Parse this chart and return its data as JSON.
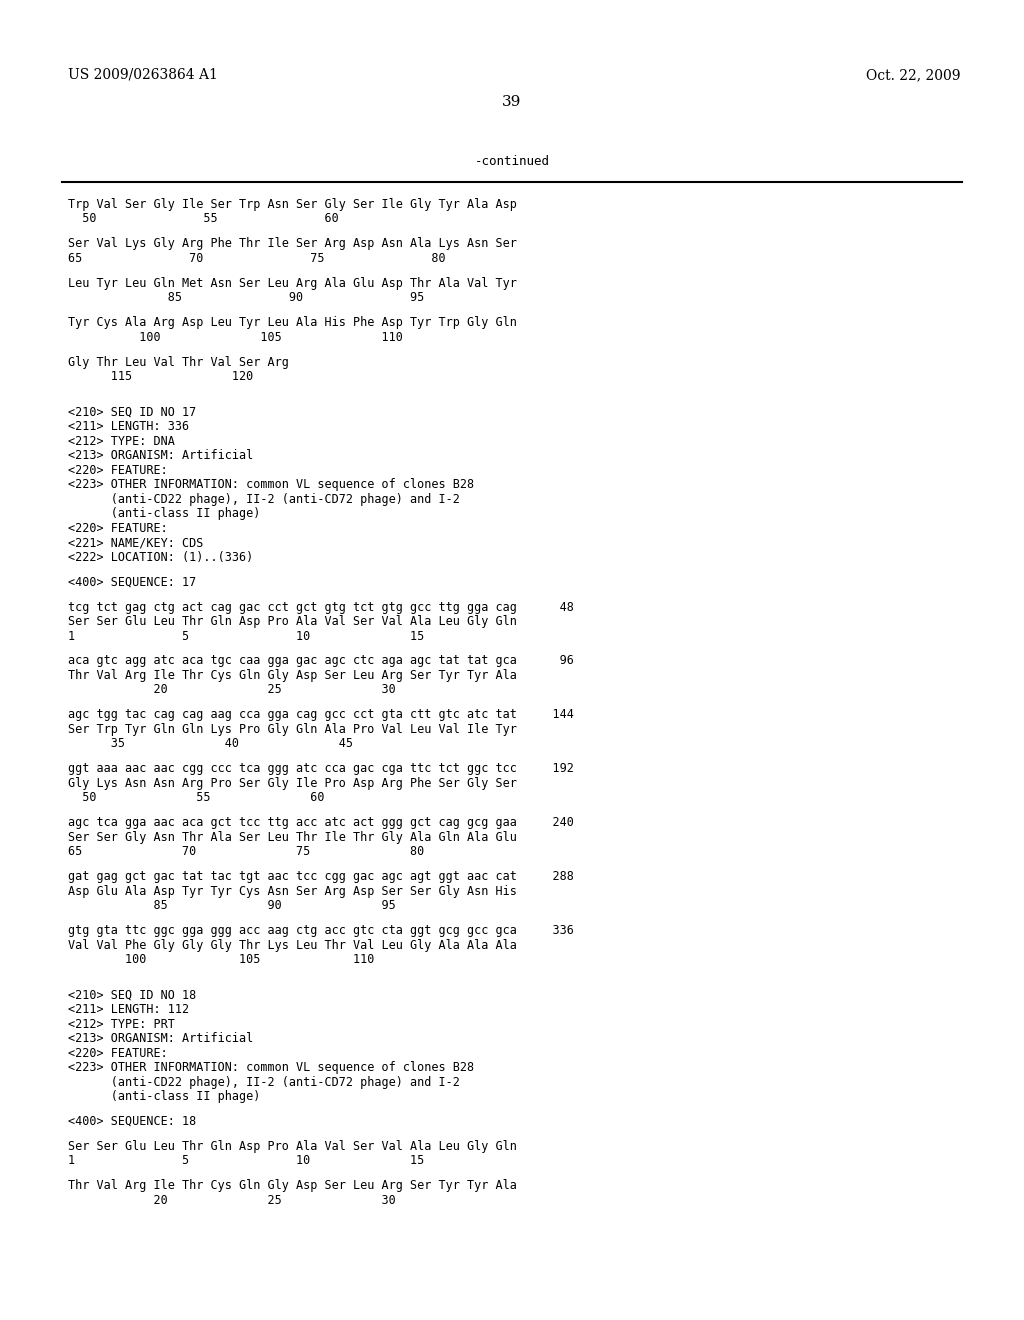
{
  "header_left": "US 2009/0263864 A1",
  "header_right": "Oct. 22, 2009",
  "page_number": "39",
  "continued_label": "-continued",
  "background_color": "#ffffff",
  "text_color": "#000000",
  "font_size": 8.5,
  "mono_font": "DejaVu Sans Mono",
  "lines": [
    "Trp Val Ser Gly Ile Ser Trp Asn Ser Gly Ser Ile Gly Tyr Ala Asp",
    "  50               55               60",
    "",
    "Ser Val Lys Gly Arg Phe Thr Ile Ser Arg Asp Asn Ala Lys Asn Ser",
    "65               70               75               80",
    "",
    "Leu Tyr Leu Gln Met Asn Ser Leu Arg Ala Glu Asp Thr Ala Val Tyr",
    "              85               90               95",
    "",
    "Tyr Cys Ala Arg Asp Leu Tyr Leu Ala His Phe Asp Tyr Trp Gly Gln",
    "          100              105              110",
    "",
    "Gly Thr Leu Val Thr Val Ser Arg",
    "      115              120",
    "",
    "",
    "<210> SEQ ID NO 17",
    "<211> LENGTH: 336",
    "<212> TYPE: DNA",
    "<213> ORGANISM: Artificial",
    "<220> FEATURE:",
    "<223> OTHER INFORMATION: common VL sequence of clones B28",
    "      (anti-CD22 phage), II-2 (anti-CD72 phage) and I-2",
    "      (anti-class II phage)",
    "<220> FEATURE:",
    "<221> NAME/KEY: CDS",
    "<222> LOCATION: (1)..(336)",
    "",
    "<400> SEQUENCE: 17",
    "",
    "tcg tct gag ctg act cag gac cct gct gtg tct gtg gcc ttg gga cag      48",
    "Ser Ser Glu Leu Thr Gln Asp Pro Ala Val Ser Val Ala Leu Gly Gln",
    "1               5               10              15",
    "",
    "aca gtc agg atc aca tgc caa gga gac agc ctc aga agc tat tat gca      96",
    "Thr Val Arg Ile Thr Cys Gln Gly Asp Ser Leu Arg Ser Tyr Tyr Ala",
    "            20              25              30",
    "",
    "agc tgg tac cag cag aag cca gga cag gcc cct gta ctt gtc atc tat     144",
    "Ser Trp Tyr Gln Gln Lys Pro Gly Gln Ala Pro Val Leu Val Ile Tyr",
    "      35              40              45",
    "",
    "ggt aaa aac aac cgg ccc tca ggg atc cca gac cga ttc tct ggc tcc     192",
    "Gly Lys Asn Asn Arg Pro Ser Gly Ile Pro Asp Arg Phe Ser Gly Ser",
    "  50              55              60",
    "",
    "agc tca gga aac aca gct tcc ttg acc atc act ggg gct cag gcg gaa     240",
    "Ser Ser Gly Asn Thr Ala Ser Leu Thr Ile Thr Gly Ala Gln Ala Glu",
    "65              70              75              80",
    "",
    "gat gag gct gac tat tac tgt aac tcc cgg gac agc agt ggt aac cat     288",
    "Asp Glu Ala Asp Tyr Tyr Cys Asn Ser Arg Asp Ser Ser Gly Asn His",
    "            85              90              95",
    "",
    "gtg gta ttc ggc gga ggg acc aag ctg acc gtc cta ggt gcg gcc gca     336",
    "Val Val Phe Gly Gly Gly Thr Lys Leu Thr Val Leu Gly Ala Ala Ala",
    "        100             105             110",
    "",
    "",
    "<210> SEQ ID NO 18",
    "<211> LENGTH: 112",
    "<212> TYPE: PRT",
    "<213> ORGANISM: Artificial",
    "<220> FEATURE:",
    "<223> OTHER INFORMATION: common VL sequence of clones B28",
    "      (anti-CD22 phage), II-2 (anti-CD72 phage) and I-2",
    "      (anti-class II phage)",
    "",
    "<400> SEQUENCE: 18",
    "",
    "Ser Ser Glu Leu Thr Gln Asp Pro Ala Val Ser Val Ala Leu Gly Gln",
    "1               5               10              15",
    "",
    "Thr Val Arg Ile Thr Cys Gln Gly Asp Ser Leu Arg Ser Tyr Tyr Ala",
    "            20              25              30"
  ]
}
